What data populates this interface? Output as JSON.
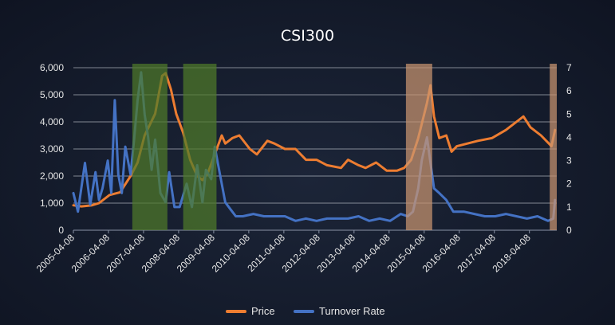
{
  "chart_data": {
    "type": "line",
    "title": "CSI300",
    "x_ticks": [
      "2005-04-08",
      "2006-04-08",
      "2007-04-08",
      "2008-04-08",
      "2009-04-08",
      "2010-04-08",
      "2011-04-08",
      "2012-04-08",
      "2013-04-08",
      "2014-04-08",
      "2015-04-08",
      "2016-04-08",
      "2017-04-08",
      "2018-04-08"
    ],
    "y_left": {
      "ticks": [
        "0",
        "1,000",
        "2,000",
        "3,000",
        "4,000",
        "5,000",
        "6,000"
      ],
      "lim": [
        0,
        6000
      ]
    },
    "y_right": {
      "ticks": [
        "0",
        "1",
        "2",
        "3",
        "4",
        "5",
        "6",
        "7"
      ],
      "lim": [
        0,
        7
      ]
    },
    "grid": true,
    "legend_position": "bottom-center",
    "series": [
      {
        "name": "Price",
        "axis": "left",
        "color": "#ed7d31",
        "x": [
          2005.27,
          2005.5,
          2005.8,
          2006.0,
          2006.3,
          2006.6,
          2006.9,
          2007.1,
          2007.3,
          2007.6,
          2007.8,
          2007.9,
          2008.05,
          2008.2,
          2008.4,
          2008.6,
          2008.8,
          2008.95,
          2009.1,
          2009.3,
          2009.5,
          2009.6,
          2009.8,
          2010.0,
          2010.3,
          2010.5,
          2010.8,
          2011.0,
          2011.3,
          2011.6,
          2011.9,
          2012.2,
          2012.5,
          2012.9,
          2013.1,
          2013.4,
          2013.6,
          2013.9,
          2014.2,
          2014.5,
          2014.7,
          2014.9,
          2015.1,
          2015.35,
          2015.45,
          2015.55,
          2015.7,
          2015.9,
          2016.05,
          2016.2,
          2016.5,
          2016.8,
          2017.2,
          2017.6,
          2017.9,
          2018.1,
          2018.3,
          2018.6,
          2018.9,
          2019.0
        ],
        "y": [
          920,
          880,
          920,
          1000,
          1300,
          1400,
          2000,
          2500,
          3500,
          4300,
          5700,
          5800,
          5200,
          4300,
          3600,
          2600,
          2000,
          1850,
          2100,
          2800,
          3500,
          3200,
          3400,
          3500,
          3000,
          2800,
          3300,
          3200,
          3000,
          3000,
          2600,
          2600,
          2400,
          2300,
          2600,
          2400,
          2300,
          2500,
          2200,
          2200,
          2300,
          2600,
          3400,
          4700,
          5350,
          4200,
          3400,
          3500,
          2900,
          3100,
          3200,
          3300,
          3400,
          3700,
          4000,
          4200,
          3800,
          3500,
          3100,
          3700
        ]
      },
      {
        "name": "Turnover Rate",
        "axis": "right",
        "color": "#4472c4",
        "x": [
          2005.27,
          2005.4,
          2005.6,
          2005.75,
          2005.9,
          2006.0,
          2006.1,
          2006.25,
          2006.35,
          2006.45,
          2006.55,
          2006.65,
          2006.75,
          2006.9,
          2007.0,
          2007.1,
          2007.2,
          2007.3,
          2007.4,
          2007.5,
          2007.6,
          2007.75,
          2007.9,
          2008.0,
          2008.15,
          2008.3,
          2008.5,
          2008.65,
          2008.8,
          2008.95,
          2009.05,
          2009.2,
          2009.3,
          2009.45,
          2009.6,
          2009.75,
          2009.9,
          2010.1,
          2010.4,
          2010.7,
          2011.0,
          2011.3,
          2011.6,
          2011.9,
          2012.2,
          2012.5,
          2012.8,
          2013.1,
          2013.4,
          2013.7,
          2014.0,
          2014.3,
          2014.6,
          2014.8,
          2014.95,
          2015.1,
          2015.2,
          2015.35,
          2015.45,
          2015.55,
          2015.7,
          2015.9,
          2016.1,
          2016.4,
          2016.7,
          2017.0,
          2017.3,
          2017.6,
          2017.9,
          2018.2,
          2018.5,
          2018.8,
          2018.95,
          2019.0
        ],
        "y": [
          1.6,
          0.8,
          2.9,
          1.1,
          2.5,
          1.3,
          1.8,
          3.0,
          1.6,
          5.6,
          2.4,
          1.6,
          3.6,
          2.4,
          3.9,
          5.6,
          6.8,
          5.0,
          4.0,
          2.6,
          3.9,
          1.6,
          1.2,
          2.5,
          1.0,
          1.0,
          2.0,
          1.0,
          2.8,
          1.2,
          2.6,
          2.2,
          3.6,
          2.4,
          1.2,
          0.9,
          0.6,
          0.6,
          0.7,
          0.6,
          0.6,
          0.6,
          0.4,
          0.5,
          0.4,
          0.5,
          0.5,
          0.5,
          0.6,
          0.4,
          0.5,
          0.4,
          0.7,
          0.6,
          0.8,
          1.8,
          3.0,
          4.0,
          2.9,
          1.8,
          1.6,
          1.3,
          0.8,
          0.8,
          0.7,
          0.6,
          0.6,
          0.7,
          0.6,
          0.5,
          0.6,
          0.4,
          0.5,
          1.3
        ]
      }
    ],
    "highlight_bands": [
      {
        "from": 2006.95,
        "to": 2007.95,
        "color": "#4f7a2a"
      },
      {
        "from": 2008.4,
        "to": 2009.35,
        "color": "#4f7a2a"
      },
      {
        "from": 2014.75,
        "to": 2015.5,
        "color": "#c99470"
      },
      {
        "from": 2018.85,
        "to": 2019.05,
        "color": "#c99470"
      }
    ]
  }
}
